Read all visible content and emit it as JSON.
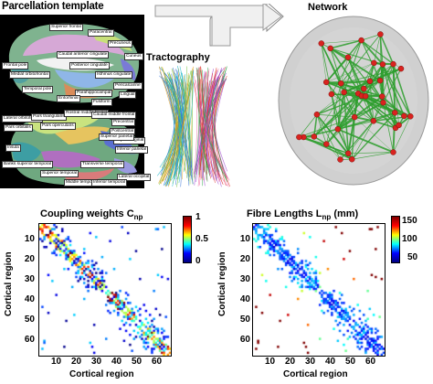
{
  "panels": {
    "parcellation": {
      "title": "Parcellation template",
      "regions": [
        "Frontal pole",
        "Medial orbitofrontal",
        "Caudal anterior cingulate",
        "Posterior cingulate",
        "Isthmus cingulate",
        "Superior frontal",
        "Paracentral",
        "Precuneus",
        "Cuneus",
        "Pericalcarine",
        "Lingual",
        "Parahippocampal",
        "Entorhinal",
        "Fusiform",
        "Temporal pole",
        "Lateral orbitofrontal",
        "Pars orbitalis",
        "Pars triangularis",
        "Pars opercularis",
        "Rostral middle frontal",
        "Caudal middle frontal",
        "Precentral",
        "Postcentral",
        "Supramarginal",
        "Inferior parietal",
        "Superior parietal",
        "Lateral occipital",
        "Banks superior temporal",
        "Transverse temporal",
        "Superior temporal",
        "Middle temporal",
        "Inferior temporal",
        "Insula"
      ]
    },
    "tractography": {
      "title": "Tractography"
    },
    "network": {
      "title": "Network"
    }
  },
  "matrices": [
    {
      "title": "Coupling weights C",
      "subscript": "np",
      "unit": "",
      "colorbar_ticks": [
        "1",
        "0.5",
        "0"
      ],
      "x_ticks": [
        "10",
        "20",
        "30",
        "40",
        "50",
        "60"
      ],
      "y_ticks": [
        "10",
        "20",
        "30",
        "40",
        "50",
        "60"
      ],
      "xlabel": "Cortical region",
      "ylabel": "Cortical region"
    },
    {
      "title": "Fibre Lengths L",
      "subscript": "np",
      "unit": " (mm)",
      "colorbar_ticks": [
        "150",
        "100",
        "50"
      ],
      "x_ticks": [
        "10",
        "20",
        "30",
        "40",
        "50",
        "60"
      ],
      "y_ticks": [
        "10",
        "20",
        "30",
        "40",
        "50",
        "60"
      ],
      "xlabel": "Cortical region",
      "ylabel": "Cortical region"
    }
  ],
  "chart_data": [
    {
      "type": "heatmap",
      "title": "Coupling weights Cnp",
      "xlabel": "Cortical region",
      "ylabel": "Cortical region",
      "xlim": [
        1,
        66
      ],
      "ylim": [
        1,
        66
      ],
      "colorbar_range": [
        0,
        1
      ],
      "structure": "symmetric sparse matrix, strong diagonal blocks at regions 1-33 and 34-66"
    },
    {
      "type": "heatmap",
      "title": "Fibre Lengths Lnp (mm)",
      "xlabel": "Cortical region",
      "ylabel": "Cortical region",
      "xlim": [
        1,
        66
      ],
      "ylim": [
        1,
        66
      ],
      "colorbar_range": [
        0,
        150
      ],
      "structure": "symmetric sparse matrix, short lengths near diagonal, longer lengths off diagonal"
    }
  ]
}
